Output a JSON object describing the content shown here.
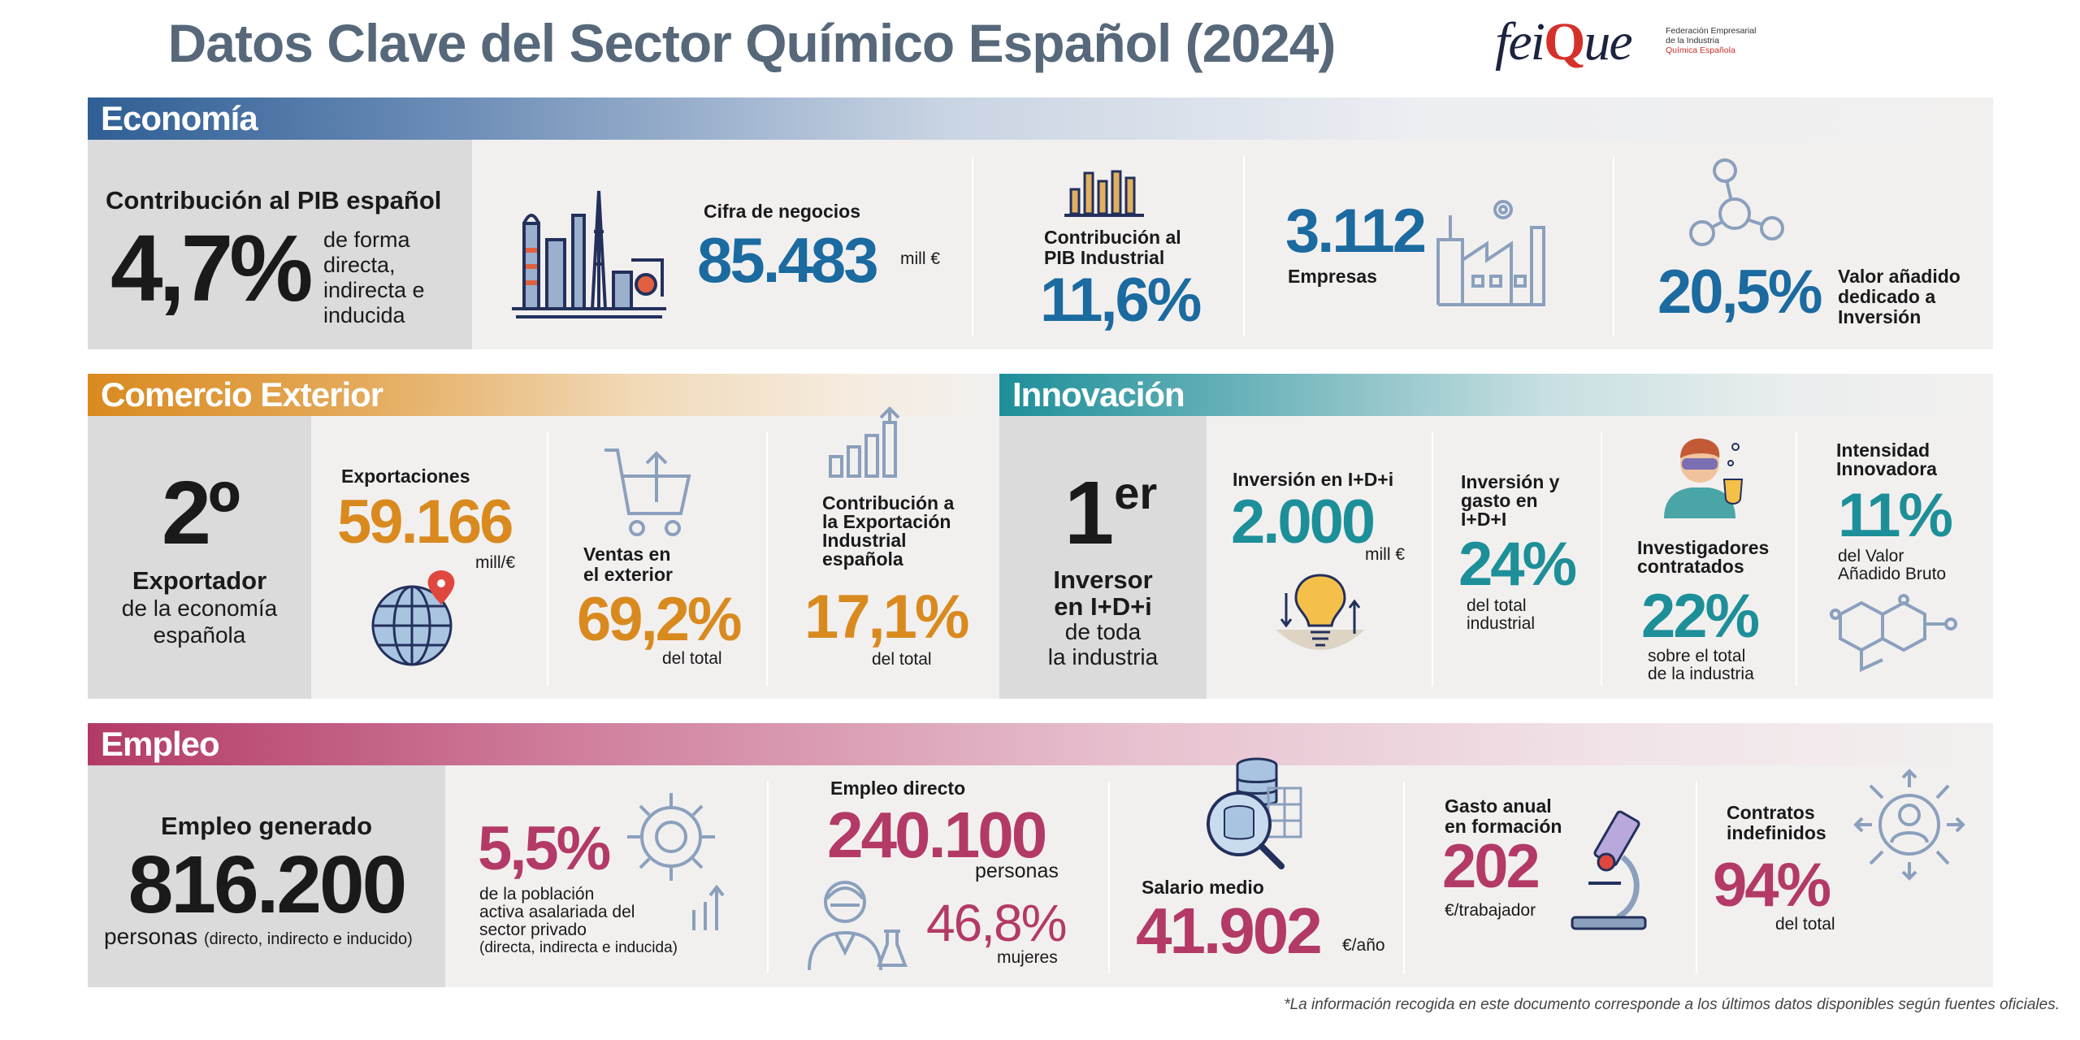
{
  "header": {
    "title": "Datos Clave del Sector Químico Español (2024)",
    "logo_word": "feiQue",
    "logo_lines": [
      "Federación Empresarial",
      "de la Industria",
      "Química Española"
    ]
  },
  "colors": {
    "economia": "#2f5f95",
    "comercio": "#d98a1f",
    "innovacion": "#1d8f99",
    "empleo": "#b33a67"
  },
  "economia": {
    "title": "Economía",
    "pib_label": "Contribución al PIB español",
    "pib_value": "4,7%",
    "pib_desc": [
      "de forma",
      "directa,",
      "indirecta e",
      "inducida"
    ],
    "cifra_label": "Cifra de negocios",
    "cifra_value": "85.483",
    "cifra_unit": "mill €",
    "pib_ind_label": [
      "Contribución al",
      "PIB Industrial"
    ],
    "pib_ind_value": "11,6%",
    "empresas_value": "3.112",
    "empresas_label": "Empresas",
    "valor_value": "20,5%",
    "valor_label": [
      "Valor añadido",
      "dedicado a",
      "Inversión"
    ]
  },
  "comercio": {
    "title": "Comercio Exterior",
    "rank": "2º",
    "rank_label": "Exportador",
    "rank_desc": [
      "de la economía",
      "española"
    ],
    "export_label": "Exportaciones",
    "export_value": "59.166",
    "export_unit": "mill/€",
    "ventas_label": [
      "Ventas en",
      "el exterior"
    ],
    "ventas_value": "69,2%",
    "ventas_unit": "del total",
    "contrib_label": [
      "Contribución a",
      "la Exportación",
      "Industrial",
      "española"
    ],
    "contrib_value": "17,1%",
    "contrib_unit": "del total"
  },
  "innovacion": {
    "title": "Innovación",
    "rank": "1",
    "rank_sup": "er",
    "rank_label": [
      "Inversor",
      "en I+D+i"
    ],
    "rank_desc": [
      "de toda",
      "la industria"
    ],
    "inv_label": "Inversión en I+D+i",
    "inv_value": "2.000",
    "inv_unit": "mill €",
    "gasto_label": [
      "Inversión y",
      "gasto en",
      "I+D+I"
    ],
    "gasto_value": "24%",
    "gasto_unit": [
      "del total",
      "industrial"
    ],
    "invest_label": [
      "Investigadores",
      "contratados"
    ],
    "invest_value": "22%",
    "invest_unit": [
      "sobre el total",
      "de la industria"
    ],
    "intens_label": [
      "Intensidad",
      "Innovadora"
    ],
    "intens_value": "11%",
    "intens_unit": [
      "del Valor",
      "Añadido Bruto"
    ]
  },
  "empleo": {
    "title": "Empleo",
    "gen_label": "Empleo generado",
    "gen_value": "816.200",
    "gen_unit": "personas",
    "gen_note": "(directo, indirecto e inducido)",
    "pob_value": "5,5%",
    "pob_desc": [
      "de la población",
      "activa asalariada del",
      "sector privado",
      "(directa, indirecta e inducida)"
    ],
    "directo_label": "Empleo directo",
    "directo_value": "240.100",
    "directo_unit": "personas",
    "mujeres_value": "46,8%",
    "mujeres_unit": "mujeres",
    "salario_label": "Salario medio",
    "salario_value": "41.902",
    "salario_unit": "€/año",
    "formacion_label": [
      "Gasto anual",
      "en formación"
    ],
    "formacion_value": "202",
    "formacion_unit": "€/trabajador",
    "contratos_label": [
      "Contratos",
      "indefinidos"
    ],
    "contratos_value": "94%",
    "contratos_unit": "del total"
  },
  "footer": "*La información recogida en este documento corresponde a los últimos datos disponibles según fuentes oficiales."
}
